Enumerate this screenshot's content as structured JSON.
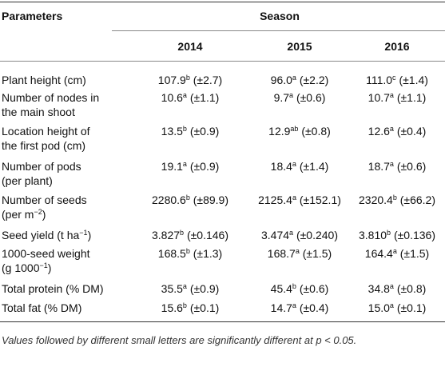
{
  "header": {
    "parameters": "Parameters",
    "season": "Season",
    "years": [
      "2014",
      "2015",
      "2016"
    ]
  },
  "rows": [
    {
      "param": [
        {
          "text": "Plant height (cm)"
        }
      ],
      "cells": [
        {
          "value": "107.9",
          "sup": "b",
          "sd": "(±2.7)"
        },
        {
          "value": "96.0",
          "sup": "a",
          "sd": "(±2.2)"
        },
        {
          "value": "111.0",
          "sup": "c",
          "sd": "(±1.4)"
        }
      ]
    },
    {
      "param": [
        {
          "text": "Number of nodes in"
        },
        {
          "text": "the main shoot"
        }
      ],
      "cells": [
        {
          "value": "10.6",
          "sup": "a",
          "sd": "(±1.1)"
        },
        {
          "value": "9.7",
          "sup": "a",
          "sd": "(±0.6)"
        },
        {
          "value": "10.7",
          "sup": "a",
          "sd": "(±1.1)"
        }
      ]
    },
    {
      "param": [
        {
          "text": "Location height of"
        },
        {
          "text": "the first pod (cm)"
        }
      ],
      "cells": [
        {
          "value": "13.5",
          "sup": "b",
          "sd": "(±0.9)"
        },
        {
          "value": "12.9",
          "sup": "ab",
          "sd": "(±0.8)"
        },
        {
          "value": "12.6",
          "sup": "a",
          "sd": "(±0.4)"
        }
      ]
    },
    {
      "param": [
        {
          "text": "Number of pods"
        },
        {
          "text": "(per plant)"
        }
      ],
      "cells": [
        {
          "value": "19.1",
          "sup": "a",
          "sd": "(±0.9)"
        },
        {
          "value": "18.4",
          "sup": "a",
          "sd": "(±1.4)"
        },
        {
          "value": "18.7",
          "sup": "a",
          "sd": "(±0.6)"
        }
      ]
    },
    {
      "param": [
        {
          "text": "Number of seeds"
        },
        {
          "text": "(per m",
          "sup": "−2",
          "after": ")"
        }
      ],
      "cells": [
        {
          "value": "2280.6",
          "sup": "b",
          "sd": "(±89.9)"
        },
        {
          "value": "2125.4",
          "sup": "a",
          "sd": "(±152.1)"
        },
        {
          "value": "2320.4",
          "sup": "b",
          "sd": "(±66.2)"
        }
      ]
    },
    {
      "param": [
        {
          "text": "Seed yield (t ha",
          "sup": "−1",
          "after": ")"
        }
      ],
      "cells": [
        {
          "value": "3.827",
          "sup": "b",
          "sd": "(±0.146)"
        },
        {
          "value": "3.474",
          "sup": "a",
          "sd": "(±0.240)"
        },
        {
          "value": "3.810",
          "sup": "b",
          "sd": "(±0.136)"
        }
      ]
    },
    {
      "param": [
        {
          "text": "1000-seed weight"
        },
        {
          "text": "(g 1000",
          "sup": "−1",
          "after": ")"
        }
      ],
      "cells": [
        {
          "value": "168.5",
          "sup": "b",
          "sd": "(±1.3)"
        },
        {
          "value": "168.7",
          "sup": "a",
          "sd": "(±1.5)"
        },
        {
          "value": "164.4",
          "sup": "a",
          "sd": "(±1.5)"
        }
      ]
    },
    {
      "param": [
        {
          "text": "Total protein (% DM)"
        }
      ],
      "cells": [
        {
          "value": "35.5",
          "sup": "a",
          "sd": "(±0.9)"
        },
        {
          "value": "45.4",
          "sup": "b",
          "sd": "(±0.6)"
        },
        {
          "value": "34.8",
          "sup": "a",
          "sd": "(±0.8)"
        }
      ]
    },
    {
      "param": [
        {
          "text": "Total fat (% DM)"
        }
      ],
      "cells": [
        {
          "value": "15.6",
          "sup": "b",
          "sd": "(±0.1)"
        },
        {
          "value": "14.7",
          "sup": "a",
          "sd": "(±0.4)"
        },
        {
          "value": "15.0",
          "sup": "a",
          "sd": "(±0.1)"
        }
      ]
    }
  ],
  "footnote": "Values followed by different small letters are significantly different at p < 0.05."
}
